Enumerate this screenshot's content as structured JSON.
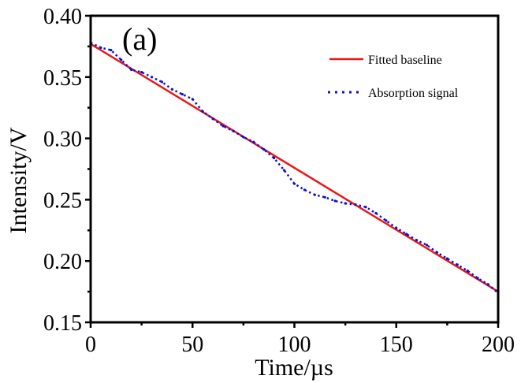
{
  "chart_data": {
    "type": "line",
    "title": "",
    "panel_label": "(a)",
    "xlabel": "Time/µs",
    "ylabel": "Intensity/V",
    "xlim": [
      0,
      200
    ],
    "ylim": [
      0.15,
      0.4
    ],
    "xticks": [
      0,
      50,
      100,
      150,
      200
    ],
    "xtick_labels": [
      "0",
      "50",
      "100",
      "150",
      "200"
    ],
    "xminor": [
      25,
      75,
      125,
      175
    ],
    "yticks": [
      0.15,
      0.2,
      0.25,
      0.3,
      0.35,
      0.4
    ],
    "ytick_labels": [
      "0.15",
      "0.20",
      "0.25",
      "0.30",
      "0.35",
      "0.40"
    ],
    "yminor": [
      0.175,
      0.225,
      0.275,
      0.325,
      0.375
    ],
    "grid": false,
    "legend_position": "top-right",
    "series": [
      {
        "name": "Fitted baseline",
        "color": "#e8191a",
        "style": "solid",
        "x": [
          0,
          200
        ],
        "y": [
          0.377,
          0.175
        ]
      },
      {
        "name": "Absorption signal",
        "color": "#1010c8",
        "style": "dotted",
        "x": [
          0,
          5,
          10,
          15,
          20,
          25,
          30,
          35,
          40,
          45,
          50,
          55,
          60,
          65,
          70,
          75,
          80,
          85,
          90,
          95,
          100,
          105,
          110,
          115,
          120,
          125,
          130,
          135,
          140,
          145,
          150,
          155,
          160,
          165,
          170,
          175,
          180,
          185,
          190,
          195,
          200
        ],
        "y": [
          0.378,
          0.374,
          0.372,
          0.364,
          0.356,
          0.354,
          0.35,
          0.346,
          0.34,
          0.336,
          0.332,
          0.322,
          0.316,
          0.31,
          0.306,
          0.301,
          0.297,
          0.291,
          0.284,
          0.274,
          0.263,
          0.258,
          0.254,
          0.252,
          0.249,
          0.247,
          0.246,
          0.244,
          0.239,
          0.233,
          0.227,
          0.222,
          0.217,
          0.213,
          0.207,
          0.202,
          0.197,
          0.192,
          0.186,
          0.181,
          0.174
        ]
      }
    ]
  }
}
